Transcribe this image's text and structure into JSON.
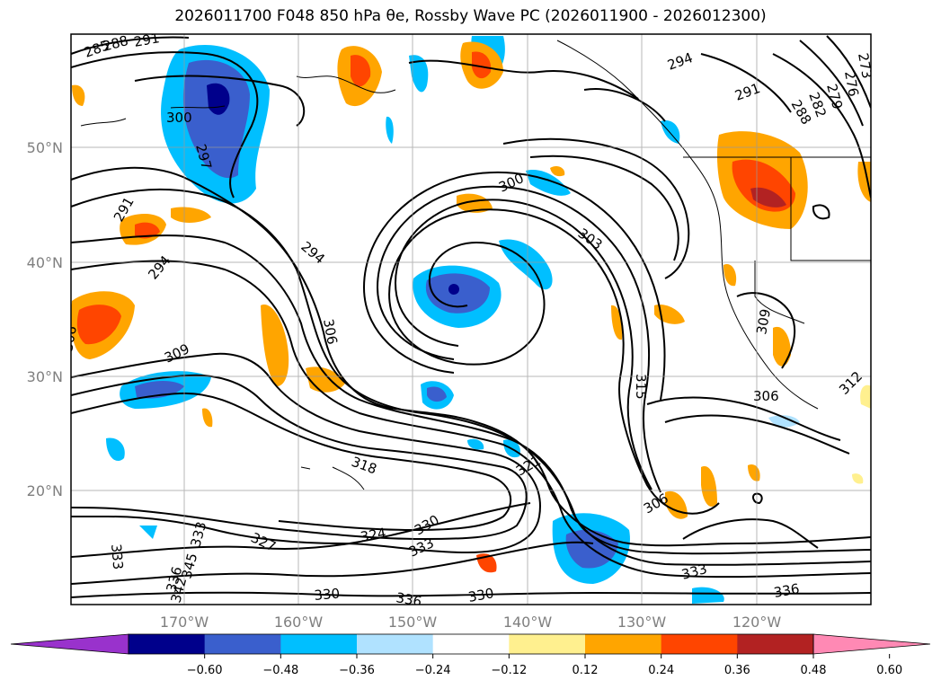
{
  "title": "2026011700 F048 850 hPa θe, Rossby Wave PC (2026011900 - 2026012300)",
  "lat_labels": [
    "50°N",
    "40°N",
    "30°N",
    "20°N"
  ],
  "lon_labels": [
    "170°W",
    "160°W",
    "150°W",
    "140°W",
    "130°W",
    "120°W"
  ],
  "contour_labels": [
    "285",
    "288",
    "291",
    "300",
    "297",
    "291",
    "294",
    "306",
    "309",
    "306",
    "294",
    "300",
    "303",
    "294",
    "291",
    "288",
    "282",
    "279",
    "276",
    "273",
    "309",
    "306",
    "312",
    "315",
    "318",
    "321",
    "306",
    "327",
    "324",
    "330",
    "333",
    "333",
    "333",
    "336",
    "342",
    "345",
    "330",
    "336",
    "330",
    "333",
    "336"
  ],
  "colorbar": {
    "colors": [
      "#9932cc",
      "#00008b",
      "#3a5fcd",
      "#00bfff",
      "#b0e2ff",
      "#ffffff",
      "#fff08f",
      "#ffa500",
      "#ff4500",
      "#b22222",
      "#ff89b4"
    ],
    "ticks": [
      "−0.60",
      "−0.48",
      "−0.36",
      "−0.24",
      "−0.12",
      "0.12",
      "0.24",
      "0.36",
      "0.48",
      "0.60"
    ]
  }
}
